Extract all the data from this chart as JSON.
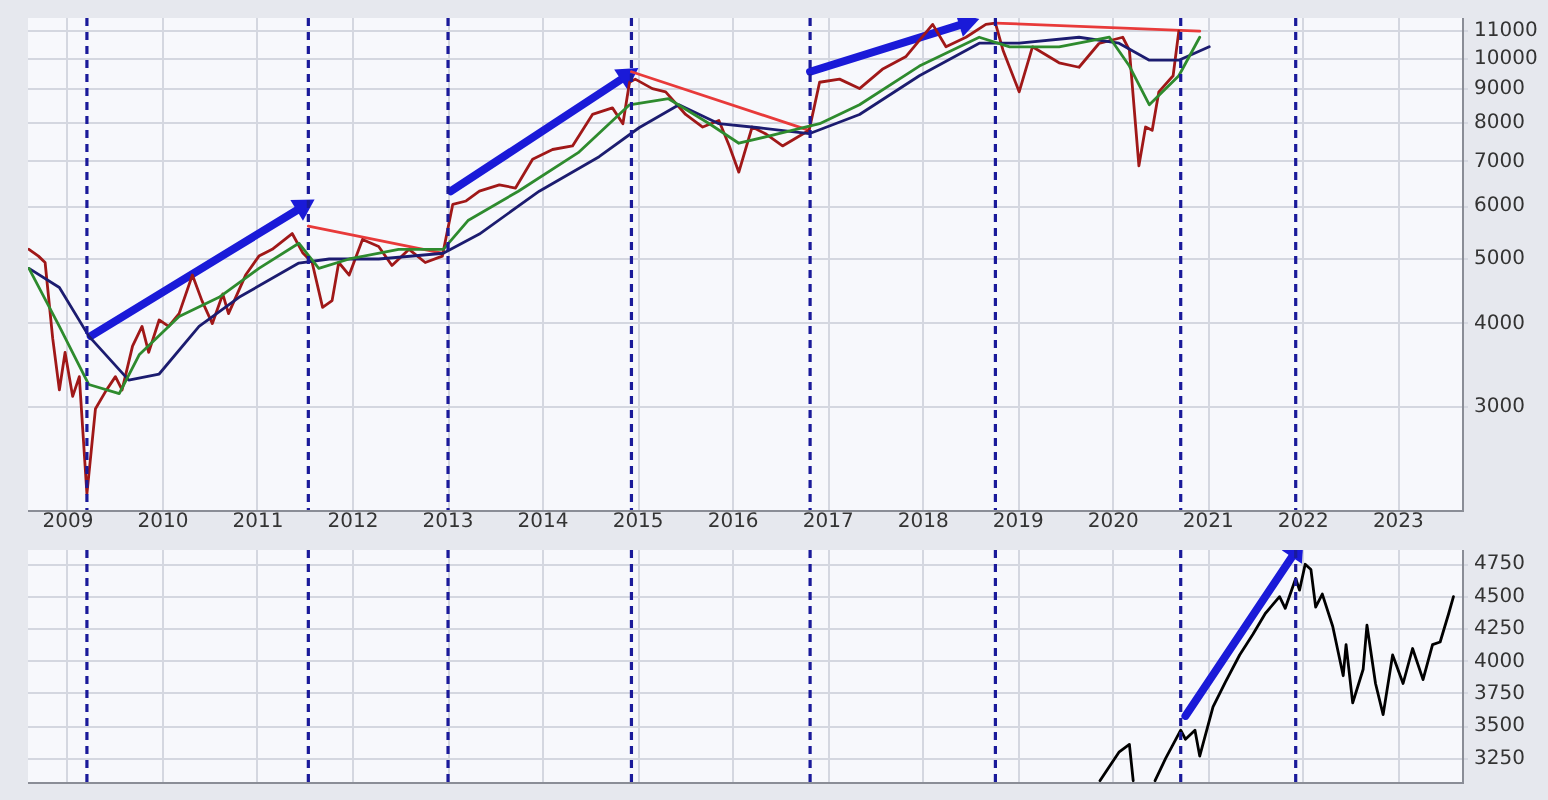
{
  "chart_data": [
    {
      "type": "line",
      "log": "y",
      "grid": true,
      "xlim": [
        2008.58,
        2023.67
      ],
      "xticks": [
        2009,
        2010,
        2011,
        2012,
        2013,
        2014,
        2015,
        2016,
        2017,
        2018,
        2019,
        2020,
        2021,
        2022,
        2023
      ],
      "ylim": [
        2100,
        11500
      ],
      "yticks": [
        3000,
        4000,
        5000,
        6000,
        7000,
        8000,
        9000,
        10000,
        11000
      ],
      "series": [
        {
          "color": "#2e8b2e",
          "x": [
            2008.59,
            2008.91,
            2009.22,
            2009.54,
            2009.75,
            2010.17,
            2010.59,
            2011.01,
            2011.43,
            2011.64,
            2011.96,
            2012.48,
            2012.95,
            2013.21,
            2013.74,
            2014.37,
            2014.91,
            2015.32,
            2015.75,
            2016.06,
            2016.48,
            2016.91,
            2017.33,
            2017.96,
            2018.59,
            2018.91,
            2019.43,
            2019.96,
            2020.17,
            2020.38,
            2020.69,
            2020.91
          ],
          "values": [
            4840,
            3960,
            3240,
            3140,
            3590,
            4100,
            4380,
            4840,
            5280,
            4840,
            5000,
            5170,
            5170,
            5710,
            6320,
            7220,
            8520,
            8700,
            7980,
            7460,
            7710,
            7980,
            8520,
            9740,
            10760,
            10410,
            10410,
            10760,
            9740,
            8520,
            9420,
            10760
          ]
        },
        {
          "color": "#1c1c70",
          "x": [
            2008.59,
            2008.91,
            2009.22,
            2009.64,
            2009.96,
            2010.38,
            2010.8,
            2011.43,
            2011.75,
            2012.27,
            2012.95,
            2013.33,
            2013.96,
            2014.59,
            2015.01,
            2015.43,
            2015.85,
            2016.27,
            2016.8,
            2017.33,
            2017.96,
            2018.59,
            2019.01,
            2019.64,
            2020.06,
            2020.38,
            2020.69,
            2021.01
          ],
          "values": [
            4840,
            4530,
            3830,
            3290,
            3360,
            3960,
            4380,
            4930,
            5000,
            5000,
            5100,
            5450,
            6320,
            7120,
            7870,
            8520,
            7980,
            7870,
            7710,
            8240,
            9420,
            10540,
            10540,
            10760,
            10540,
            9940,
            9940,
            10410
          ]
        },
        {
          "color": "#a01818",
          "x": [
            2008.59,
            2008.69,
            2008.76,
            2008.84,
            2008.91,
            2008.97,
            2009.05,
            2009.12,
            2009.2,
            2009.29,
            2009.4,
            2009.5,
            2009.57,
            2009.68,
            2009.78,
            2009.85,
            2009.96,
            2010.06,
            2010.17,
            2010.31,
            2010.41,
            2010.52,
            2010.63,
            2010.69,
            2010.87,
            2011.01,
            2011.15,
            2011.36,
            2011.47,
            2011.57,
            2011.68,
            2011.78,
            2011.85,
            2011.96,
            2012.1,
            2012.27,
            2012.41,
            2012.59,
            2012.76,
            2012.94,
            2013.05,
            2013.19,
            2013.33,
            2013.54,
            2013.71,
            2013.89,
            2014.1,
            2014.31,
            2014.52,
            2014.73,
            2014.84,
            2014.91,
            2014.97,
            2015.15,
            2015.29,
            2015.5,
            2015.68,
            2015.85,
            2015.96,
            2016.06,
            2016.2,
            2016.34,
            2016.52,
            2016.8,
            2016.91,
            2017.12,
            2017.33,
            2017.57,
            2017.82,
            2018.1,
            2018.24,
            2018.45,
            2018.66,
            2018.76,
            2018.84,
            2019.01,
            2019.15,
            2019.43,
            2019.64,
            2019.85,
            2020.1,
            2020.17,
            2020.27,
            2020.34,
            2020.41,
            2020.48,
            2020.63,
            2020.69
          ],
          "values": [
            5170,
            5050,
            4940,
            3800,
            3180,
            3620,
            3110,
            3330,
            2220,
            2980,
            3170,
            3330,
            3180,
            3700,
            3960,
            3620,
            4050,
            3960,
            4140,
            4730,
            4330,
            4000,
            4430,
            4140,
            4730,
            5050,
            5170,
            5460,
            5110,
            4940,
            4230,
            4330,
            4940,
            4730,
            5350,
            5220,
            4890,
            5170,
            4940,
            5050,
            6040,
            6110,
            6320,
            6460,
            6390,
            7060,
            7300,
            7390,
            8240,
            8430,
            7980,
            9210,
            9310,
            9010,
            8910,
            8240,
            7890,
            8070,
            7390,
            6750,
            7890,
            7710,
            7390,
            7800,
            9210,
            9310,
            9010,
            9630,
            10070,
            11250,
            10410,
            10760,
            11250,
            11300,
            10290,
            8910,
            10410,
            9850,
            9700,
            10530,
            10760,
            10290,
            6900,
            7890,
            7800,
            8910,
            9420,
            10990
          ]
        },
        {
          "color": "#e83a3a",
          "x": [
            2011.53,
            2012.95
          ],
          "values": [
            5600,
            5100
          ]
        },
        {
          "color": "#e83a3a",
          "x": [
            2014.93,
            2016.8
          ],
          "values": [
            9550,
            7800
          ]
        },
        {
          "color": "#e83a3a",
          "x": [
            2018.76,
            2020.91
          ],
          "values": [
            11300,
            10990
          ]
        },
        {
          "color": "#1a1ad8",
          "marker": "triangle",
          "x": [
            2009.24,
            2011.47
          ],
          "values": [
            3830,
            5990
          ]
        },
        {
          "color": "#1a1ad8",
          "marker": "triangle",
          "x": [
            2013.03,
            2014.88
          ],
          "values": [
            6320,
            9420
          ]
        },
        {
          "color": "#1a1ad8",
          "marker": "triangle",
          "x": [
            2016.81,
            2018.45
          ],
          "values": [
            9550,
            11300
          ]
        }
      ],
      "ref_lines": [
        {
          "axis": "x",
          "value": 2009.2,
          "color": "#1a1a9a",
          "line_style": "dashed"
        },
        {
          "axis": "x",
          "value": 2011.53,
          "color": "#1a1a9a",
          "line_style": "dashed"
        },
        {
          "axis": "x",
          "value": 2013.0,
          "color": "#1a1a9a",
          "line_style": "dashed"
        },
        {
          "axis": "x",
          "value": 2014.93,
          "color": "#1a1a9a",
          "line_style": "dashed"
        },
        {
          "axis": "x",
          "value": 2016.81,
          "color": "#1a1a9a",
          "line_style": "dashed"
        },
        {
          "axis": "x",
          "value": 2018.76,
          "color": "#1a1a9a",
          "line_style": "dashed"
        },
        {
          "axis": "x",
          "value": 2020.71,
          "color": "#1a1a9a",
          "line_style": "dashed"
        },
        {
          "axis": "x",
          "value": 2021.92,
          "color": "#1a1a9a",
          "line_style": "dashed"
        }
      ]
    },
    {
      "type": "line",
      "grid": true,
      "tick_labels": "y",
      "xlim": [
        2008.58,
        2023.67
      ],
      "xticks": [
        2009,
        2010,
        2011,
        2012,
        2013,
        2014,
        2015,
        2016,
        2017,
        2018,
        2019,
        2020,
        2021,
        2022,
        2023
      ],
      "ylim": [
        3070,
        4860
      ],
      "yticks": [
        3250,
        3500,
        3750,
        4000,
        4250,
        4500,
        4750
      ],
      "series": [
        {
          "color": "#000000",
          "x": [
            2019.86,
            2020.06,
            2020.17,
            2020.21,
            2020.3,
            2020.44,
            2020.55,
            2020.71,
            2020.76,
            2020.86,
            2020.91,
            2021.05,
            2021.18,
            2021.33,
            2021.47,
            2021.6,
            2021.75,
            2021.81,
            2021.92,
            2021.96,
            2022.02,
            2022.08,
            2022.13,
            2022.2,
            2022.31,
            2022.42,
            2022.45,
            2022.52,
            2022.63,
            2022.67,
            2022.76,
            2022.84,
            2022.94,
            2023.05,
            2023.15,
            2023.26,
            2023.36,
            2023.44,
            2023.53,
            2023.58
          ],
          "values": [
            3080,
            3300,
            3360,
            3080,
            null,
            3080,
            3250,
            3470,
            3400,
            3470,
            3270,
            3650,
            3840,
            4050,
            4210,
            4370,
            4500,
            4410,
            4640,
            4550,
            4750,
            4710,
            4420,
            4520,
            4270,
            3890,
            4130,
            3680,
            3940,
            4280,
            3830,
            3590,
            4050,
            3830,
            4100,
            3860,
            4130,
            4150,
            4370,
            4500
          ]
        },
        {
          "color": "#1a1ad8",
          "marker": "triangle",
          "x": [
            2020.76,
            2021.92
          ],
          "values": [
            3580,
            4850
          ]
        }
      ],
      "ref_lines": [
        {
          "axis": "x",
          "value": 2009.2,
          "color": "#1a1a9a",
          "line_style": "dashed"
        },
        {
          "axis": "x",
          "value": 2011.53,
          "color": "#1a1a9a",
          "line_style": "dashed"
        },
        {
          "axis": "x",
          "value": 2013.0,
          "color": "#1a1a9a",
          "line_style": "dashed"
        },
        {
          "axis": "x",
          "value": 2014.93,
          "color": "#1a1a9a",
          "line_style": "dashed"
        },
        {
          "axis": "x",
          "value": 2016.81,
          "color": "#1a1a9a",
          "line_style": "dashed"
        },
        {
          "axis": "x",
          "value": 2018.76,
          "color": "#1a1a9a",
          "line_style": "dashed"
        },
        {
          "axis": "x",
          "value": 2020.71,
          "color": "#1a1a9a",
          "line_style": "dashed"
        },
        {
          "axis": "x",
          "value": 2021.92,
          "color": "#1a1a9a",
          "line_style": "dashed"
        }
      ]
    }
  ]
}
